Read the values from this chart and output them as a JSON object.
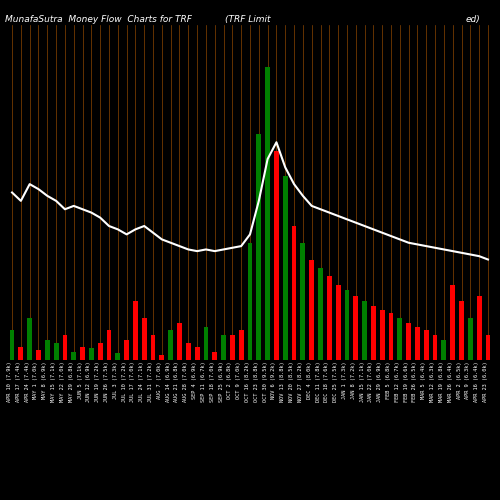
{
  "title_left": "MunafaSutra  Money Flow  Charts for TRF",
  "title_mid": "(TRF Limit",
  "title_right": "ed)",
  "background_color": "#000000",
  "bar_colors": [
    "green",
    "red",
    "green",
    "red",
    "green",
    "green",
    "red",
    "green",
    "red",
    "green",
    "red",
    "red",
    "green",
    "red",
    "red",
    "red",
    "red",
    "red",
    "green",
    "red",
    "red",
    "red",
    "green",
    "red",
    "green",
    "red",
    "red",
    "green",
    "green",
    "green",
    "red",
    "green",
    "red",
    "green",
    "red",
    "green",
    "red",
    "red",
    "green",
    "red",
    "green",
    "red",
    "red",
    "red",
    "green",
    "red",
    "red",
    "red",
    "red",
    "green",
    "red",
    "red",
    "green",
    "red",
    "red"
  ],
  "bar_heights": [
    1.8,
    0.8,
    2.5,
    0.6,
    1.2,
    1.0,
    1.5,
    0.5,
    0.8,
    0.7,
    1.0,
    1.8,
    0.4,
    1.2,
    3.5,
    2.5,
    1.5,
    0.3,
    1.8,
    2.2,
    1.0,
    0.8,
    2.0,
    0.5,
    1.5,
    1.5,
    1.8,
    7.0,
    13.5,
    17.5,
    12.5,
    11.0,
    8.0,
    7.0,
    6.0,
    5.5,
    5.0,
    4.5,
    4.2,
    3.8,
    3.5,
    3.2,
    3.0,
    2.8,
    2.5,
    2.2,
    2.0,
    1.8,
    1.5,
    1.2,
    4.5,
    3.5,
    2.5,
    3.8,
    1.5
  ],
  "line_values": [
    10.0,
    9.5,
    10.5,
    10.2,
    9.8,
    9.5,
    9.0,
    9.2,
    9.0,
    8.8,
    8.5,
    8.0,
    7.8,
    7.5,
    7.8,
    8.0,
    7.6,
    7.2,
    7.0,
    6.8,
    6.6,
    6.5,
    6.6,
    6.5,
    6.6,
    6.7,
    6.8,
    7.5,
    9.5,
    12.0,
    13.0,
    11.5,
    10.5,
    9.8,
    9.2,
    9.0,
    8.8,
    8.6,
    8.4,
    8.2,
    8.0,
    7.8,
    7.6,
    7.4,
    7.2,
    7.0,
    6.9,
    6.8,
    6.7,
    6.6,
    6.5,
    6.4,
    6.3,
    6.2,
    6.0
  ],
  "x_labels": [
    "APR 10 (7.9k)",
    "APR 17 (7.4k)",
    "APR 24 (7.4k)",
    "MAY 1 (7.0k)",
    "MAY 8 (6.9k)",
    "MAY 15 (7.1k)",
    "MAY 22 (7.0k)",
    "MAY 29 (6.8k)",
    "JUN 5 (7.1k)",
    "JUN 12 (6.9k)",
    "JUN 19 (7.2k)",
    "JUN 26 (7.5k)",
    "JUL 3 (7.3k)",
    "JUL 10 (7.2k)",
    "JUL 17 (7.0k)",
    "JUL 24 (7.1k)",
    "JUL 31 (7.2k)",
    "AUG 7 (7.0k)",
    "AUG 14 (6.9k)",
    "AUG 21 (6.8k)",
    "AUG 28 (7.0k)",
    "SEP 4 (6.9k)",
    "SEP 11 (6.7k)",
    "SEP 18 (7.0k)",
    "SEP 25 (6.9k)",
    "OCT 2 (6.8k)",
    "OCT 9 (7.0k)",
    "OCT 16 (8.2k)",
    "OCT 23 (8.8k)",
    "OCT 30 (9.5k)",
    "NOV 6 (9.2k)",
    "NOV 13 (8.8k)",
    "NOV 20 (8.5k)",
    "NOV 27 (8.2k)",
    "DEC 4 (8.0k)",
    "DEC 11 (7.8k)",
    "DEC 18 (7.6k)",
    "DEC 25 (7.5k)",
    "JAN 1 (7.3k)",
    "JAN 8 (7.2k)",
    "JAN 15 (7.1k)",
    "JAN 22 (7.0k)",
    "JAN 29 (6.9k)",
    "FEB 5 (6.8k)",
    "FEB 12 (6.7k)",
    "FEB 19 (6.6k)",
    "FEB 26 (6.5k)",
    "MAR 5 (6.4k)",
    "MAR 12 (6.3k)",
    "MAR 19 (6.8k)",
    "MAR 26 (6.4k)",
    "APR 2 (6.5k)",
    "APR 9 (6.3k)",
    "APR 16 (6.4k)",
    "APR 23 (6.0k)"
  ],
  "n_bars": 55,
  "orange_line_color": "#8B4500",
  "line_color": "#ffffff",
  "line_width": 1.5,
  "title_fontsize": 6.5,
  "label_fontsize": 3.8,
  "ylim_max": 20.0
}
